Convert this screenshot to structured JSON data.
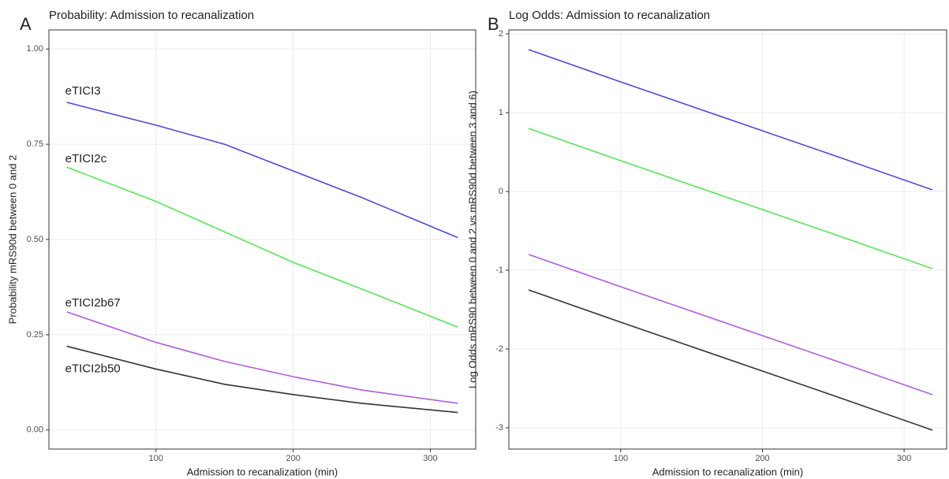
{
  "chart_data": [
    {
      "type": "line",
      "panel": "A",
      "title": "Probability: Admission to recanalization",
      "xlabel": "Admission to recanalization (min)",
      "ylabel": "Probability mRS90d between 0 and 2",
      "x": [
        35,
        100,
        150,
        200,
        250,
        320
      ],
      "series": [
        {
          "name": "eTICI3",
          "color": "#4b4bd8",
          "values": [
            0.86,
            0.8,
            0.75,
            0.68,
            0.61,
            0.505
          ]
        },
        {
          "name": "eTICI2c",
          "color": "#55e655",
          "values": [
            0.69,
            0.6,
            0.52,
            0.44,
            0.37,
            0.27
          ]
        },
        {
          "name": "eTICI2b67",
          "color": "#b05ce0",
          "values": [
            0.31,
            0.23,
            0.18,
            0.14,
            0.105,
            0.07
          ]
        },
        {
          "name": "eTICI2b50",
          "color": "#333333",
          "values": [
            0.22,
            0.16,
            0.12,
            0.093,
            0.07,
            0.046
          ]
        }
      ],
      "xlim": [
        22,
        333
      ],
      "xticks": [
        100,
        200,
        300
      ],
      "ylim": [
        -0.05,
        1.05
      ],
      "yticks": [
        {
          "value": 0,
          "label": "0.00"
        },
        {
          "value": 0.25,
          "label": "0.25"
        },
        {
          "value": 0.5,
          "label": "0.50"
        },
        {
          "value": 0.75,
          "label": "0.75"
        },
        {
          "value": 1,
          "label": "1.00"
        }
      ],
      "grid": true
    },
    {
      "type": "line",
      "panel": "B",
      "title": "Log Odds: Admission to recanalization",
      "xlabel": "Admission to recanalization (min)",
      "ylabel": "Log Odds mRS90 between 0 and 2 vs mRS90d between 3 and 6)",
      "x": [
        35,
        100,
        150,
        200,
        250,
        320
      ],
      "series": [
        {
          "color": "#4b4bd8",
          "values": [
            1.8,
            1.39,
            1.08,
            0.77,
            0.46,
            0.02
          ]
        },
        {
          "color": "#55e655",
          "values": [
            0.8,
            0.39,
            0.08,
            -0.23,
            -0.54,
            -0.98
          ]
        },
        {
          "color": "#b05ce0",
          "values": [
            -0.8,
            -1.21,
            -1.52,
            -1.83,
            -2.14,
            -2.58
          ]
        },
        {
          "color": "#333333",
          "values": [
            -1.25,
            -1.66,
            -1.97,
            -2.28,
            -2.59,
            -3.03
          ]
        }
      ],
      "xlim": [
        21,
        330
      ],
      "xticks": [
        100,
        200,
        300
      ],
      "ylim": [
        -3.27,
        2.05
      ],
      "yticks": [
        -3,
        -2,
        -1,
        0,
        1,
        2
      ],
      "grid": true
    }
  ]
}
